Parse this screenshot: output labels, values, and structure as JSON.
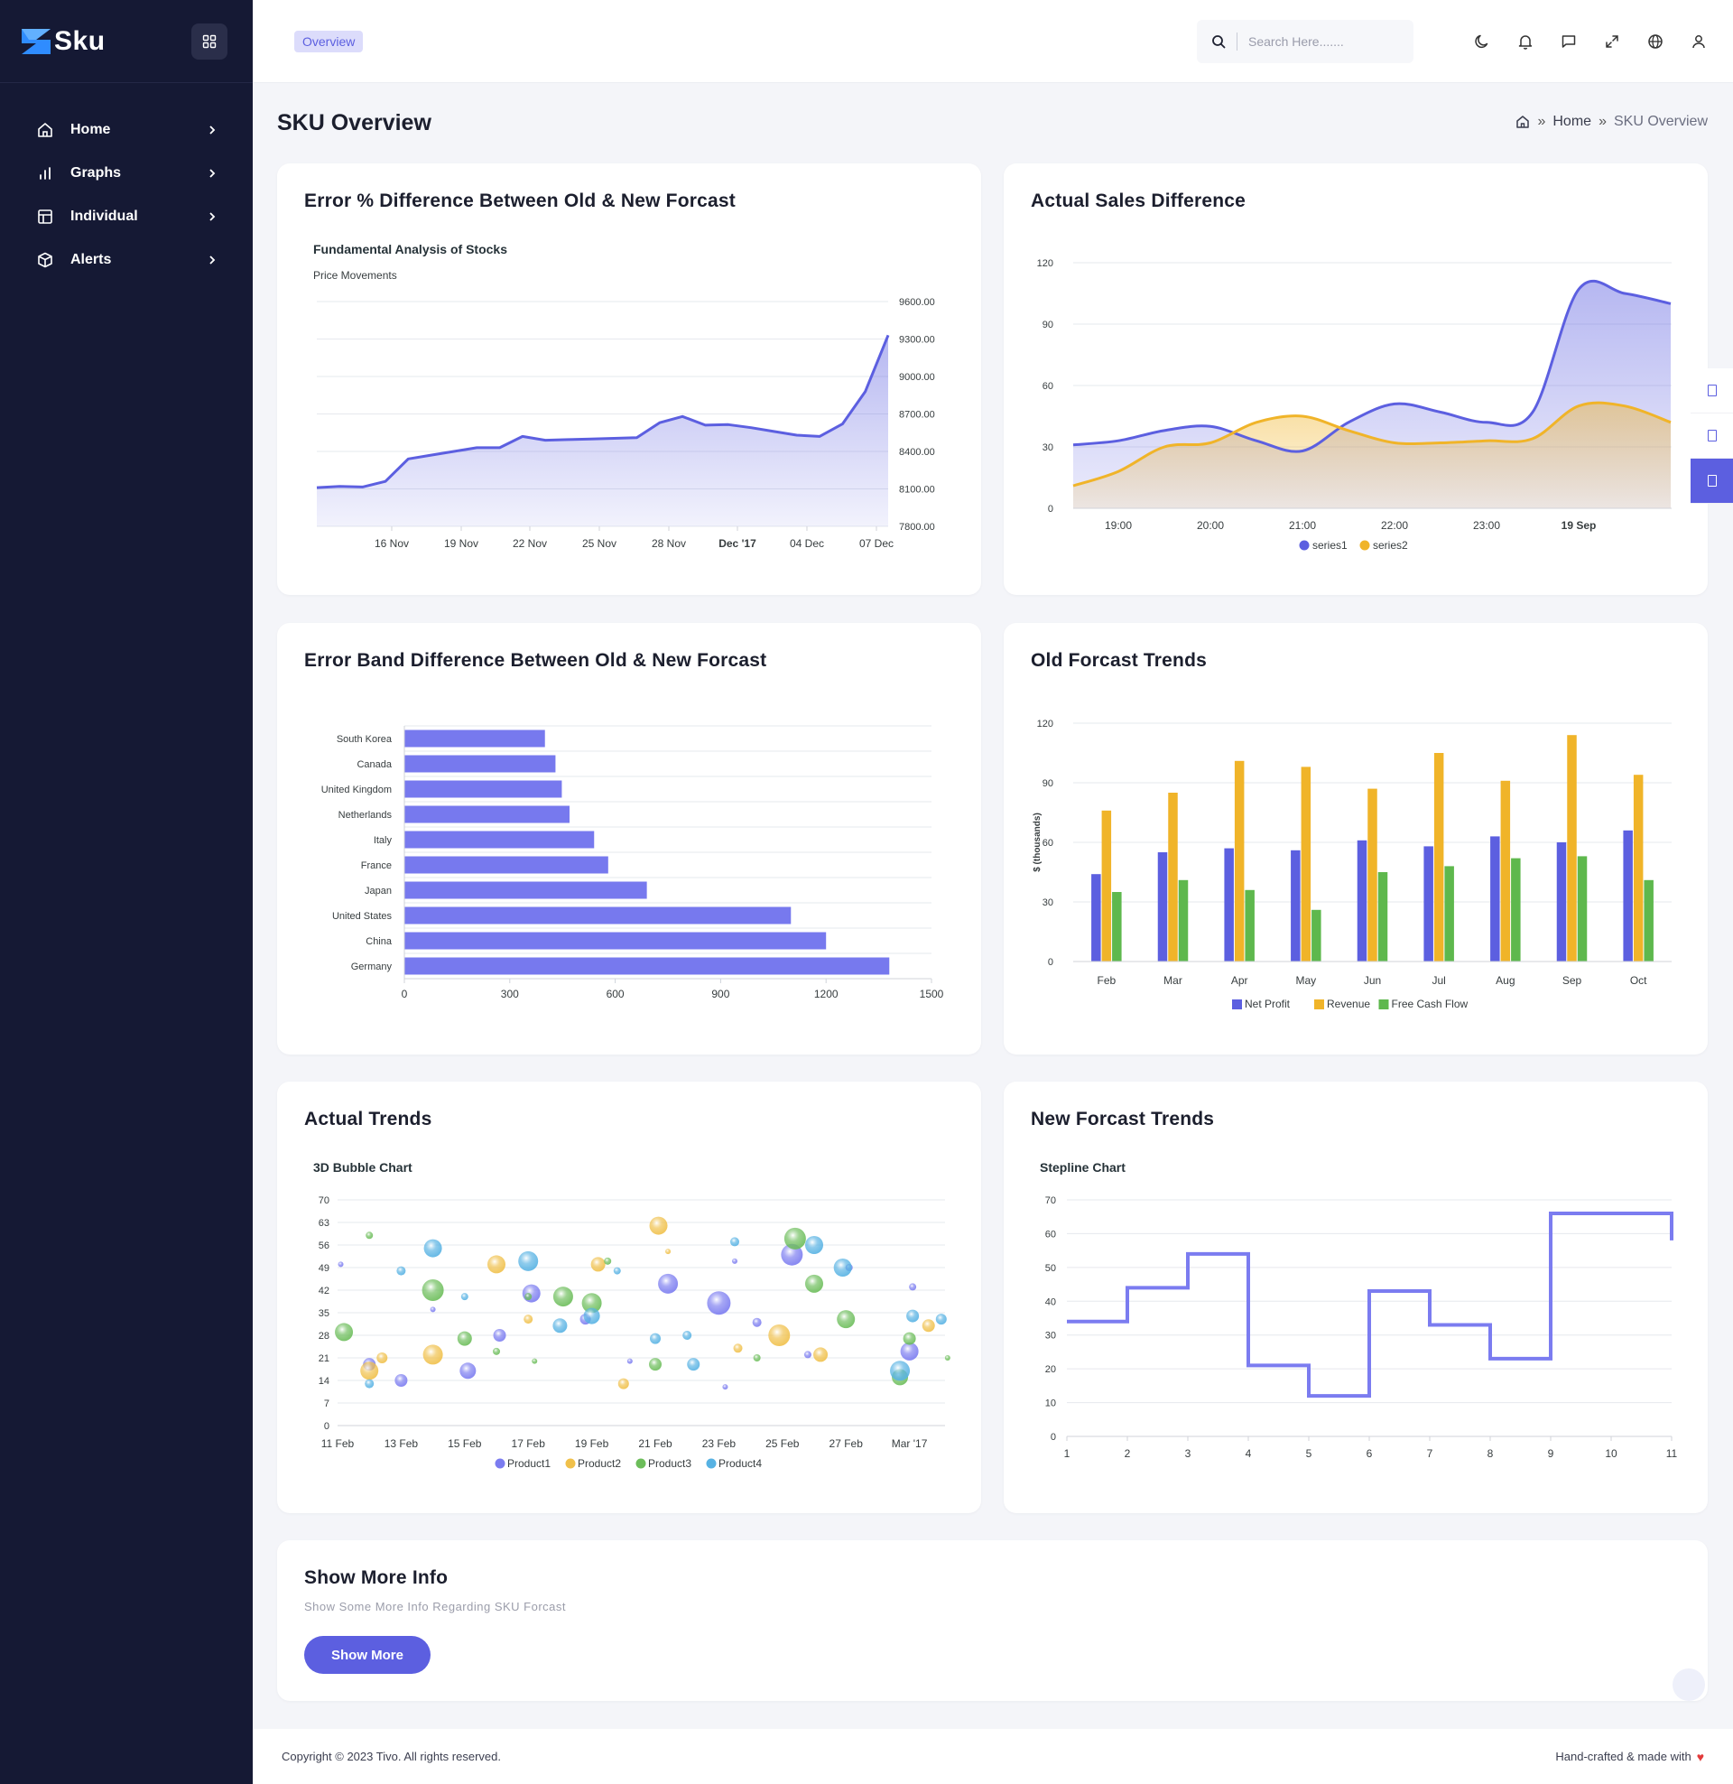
{
  "brand": {
    "name": "Sku",
    "accent": "#5c5fe0",
    "sidebar_bg": "#151934"
  },
  "sidebar": {
    "items": [
      {
        "label": "Home",
        "icon": "home-icon"
      },
      {
        "label": "Graphs",
        "icon": "bar-chart-icon"
      },
      {
        "label": "Individual",
        "icon": "layout-icon"
      },
      {
        "label": "Alerts",
        "icon": "box-icon"
      }
    ]
  },
  "header": {
    "tab": "Overview",
    "search_placeholder": "Search Here.......",
    "icons": [
      "moon-icon",
      "bell-icon",
      "chat-icon",
      "fullscreen-icon",
      "globe-icon",
      "user-icon"
    ]
  },
  "page": {
    "title": "SKU Overview",
    "breadcrumb": [
      "Home",
      "SKU Overview"
    ]
  },
  "cards": {
    "c1": "Error % Difference Between Old & New Forcast",
    "c2": "Actual Sales Difference",
    "c3": "Error Band Difference Between Old & New Forcast",
    "c4": "Old Forcast Trends",
    "c5": "Actual Trends",
    "c6": "New Forcast Trends"
  },
  "info": {
    "title": "Show More Info",
    "subtitle": "Show Some More Info Regarding SKU Forcast",
    "button": "Show More"
  },
  "footer": {
    "copyright": "Copyright © 2023 Tivo. All rights reserved.",
    "credit": "Hand-crafted & made with"
  },
  "chart_data": [
    {
      "type": "area",
      "title": "Fundamental Analysis of Stocks",
      "subtitle": "Price Movements",
      "x_ticks": [
        "16 Nov",
        "19 Nov",
        "22 Nov",
        "25 Nov",
        "28 Nov",
        "Dec '17",
        "04 Dec",
        "07 Dec"
      ],
      "ylim": [
        7800,
        9600
      ],
      "y_ticks": [
        "7800.00",
        "8100.00",
        "8400.00",
        "8700.00",
        "9000.00",
        "9300.00",
        "9600.00"
      ],
      "y_axis": "right",
      "values": [
        8110,
        8120,
        8115,
        8160,
        8340,
        8370,
        8400,
        8430,
        8430,
        8520,
        8490,
        8495,
        8500,
        8505,
        8510,
        8630,
        8680,
        8610,
        8615,
        8590,
        8560,
        8530,
        8520,
        8620,
        8880,
        9330
      ],
      "color": "#5c5fe0"
    },
    {
      "type": "area",
      "x_ticks": [
        "19:00",
        "20:00",
        "21:00",
        "22:00",
        "23:00",
        "19 Sep"
      ],
      "ylim": [
        0,
        120
      ],
      "y_ticks": [
        0,
        30,
        60,
        90,
        120
      ],
      "x": [
        -0.5,
        0,
        0.5,
        1,
        1.5,
        2,
        2.5,
        3,
        3.5,
        4,
        4.5,
        5,
        5.5,
        6
      ],
      "series": [
        {
          "name": "series1",
          "color": "#5c5fe0",
          "values": [
            31,
            33,
            38,
            40,
            33,
            28,
            42,
            51,
            47,
            42,
            47,
            107,
            105,
            100
          ]
        },
        {
          "name": "series2",
          "color": "#f0b429",
          "values": [
            11,
            18,
            30,
            32,
            42,
            45,
            38,
            32,
            32,
            33,
            34,
            50,
            50,
            42
          ]
        }
      ],
      "legend": "bottom"
    },
    {
      "type": "bar",
      "orientation": "horizontal",
      "categories": [
        "South Korea",
        "Canada",
        "United Kingdom",
        "Netherlands",
        "Italy",
        "France",
        "Japan",
        "United States",
        "China",
        "Germany"
      ],
      "values": [
        400,
        430,
        448,
        470,
        540,
        580,
        690,
        1100,
        1200,
        1380
      ],
      "xlim": [
        0,
        1500
      ],
      "x_ticks": [
        0,
        300,
        600,
        900,
        1200,
        1500
      ],
      "color": "#7779ee"
    },
    {
      "type": "bar",
      "categories": [
        "Feb",
        "Mar",
        "Apr",
        "May",
        "Jun",
        "Jul",
        "Aug",
        "Sep",
        "Oct"
      ],
      "ylabel": "$ (thousands)",
      "ylim": [
        0,
        120
      ],
      "y_ticks": [
        0,
        30,
        60,
        90,
        120
      ],
      "series": [
        {
          "name": "Net Profit",
          "color": "#5c5fe0",
          "values": [
            44,
            55,
            57,
            56,
            61,
            58,
            63,
            60,
            66
          ]
        },
        {
          "name": "Revenue",
          "color": "#f0b429",
          "values": [
            76,
            85,
            101,
            98,
            87,
            105,
            91,
            114,
            94
          ]
        },
        {
          "name": "Free Cash Flow",
          "color": "#5eb84d",
          "values": [
            35,
            41,
            36,
            26,
            45,
            48,
            52,
            53,
            41
          ]
        }
      ],
      "legend": "bottom"
    },
    {
      "type": "scatter",
      "title": "3D Bubble Chart",
      "x_ticks": [
        "11 Feb",
        "13 Feb",
        "15 Feb",
        "17 Feb",
        "19 Feb",
        "21 Feb",
        "23 Feb",
        "25 Feb",
        "27 Feb",
        "Mar '17"
      ],
      "ylim": [
        0,
        70
      ],
      "y_ticks": [
        0,
        7,
        14,
        21,
        28,
        35,
        42,
        49,
        56,
        63,
        70
      ],
      "series": [
        {
          "name": "Product1",
          "color": "#7b7cf0",
          "points": [
            [
              0.1,
              50,
              3
            ],
            [
              1,
              19,
              7
            ],
            [
              2,
              14,
              7
            ],
            [
              3,
              36,
              3
            ],
            [
              4.1,
              17,
              9
            ],
            [
              5.1,
              28,
              7
            ],
            [
              6.1,
              41,
              10
            ],
            [
              7.8,
              33,
              6
            ],
            [
              9.2,
              20,
              3
            ],
            [
              10.4,
              44,
              11
            ],
            [
              12,
              38,
              13
            ],
            [
              12.2,
              12,
              3
            ],
            [
              12.5,
              51,
              3
            ],
            [
              13.2,
              32,
              5
            ],
            [
              14.3,
              53,
              12
            ],
            [
              14.8,
              22,
              4
            ],
            [
              16.1,
              49,
              4
            ],
            [
              18,
              23,
              10
            ],
            [
              18.1,
              43,
              4
            ]
          ]
        },
        {
          "name": "Product2",
          "color": "#f0c04a",
          "points": [
            [
              1,
              17,
              10
            ],
            [
              1.4,
              21,
              6
            ],
            [
              3,
              22,
              11
            ],
            [
              5,
              50,
              10
            ],
            [
              6,
              33,
              5
            ],
            [
              8.2,
              50,
              8
            ],
            [
              9,
              13,
              6
            ],
            [
              10.1,
              62,
              10
            ],
            [
              10.4,
              54,
              3
            ],
            [
              12.6,
              24,
              5
            ],
            [
              13.9,
              28,
              12
            ],
            [
              15.2,
              22,
              8
            ],
            [
              18.6,
              31,
              7
            ]
          ]
        },
        {
          "name": "Product3",
          "color": "#6cbd5a",
          "points": [
            [
              0.2,
              29,
              10
            ],
            [
              1,
              59,
              4
            ],
            [
              3,
              42,
              12
            ],
            [
              4,
              27,
              8
            ],
            [
              5,
              23,
              4
            ],
            [
              6,
              40,
              4
            ],
            [
              6.2,
              20,
              3
            ],
            [
              7.1,
              40,
              11
            ],
            [
              8,
              38,
              11
            ],
            [
              8.5,
              51,
              4
            ],
            [
              10,
              19,
              7
            ],
            [
              13.2,
              21,
              4
            ],
            [
              14.4,
              58,
              12
            ],
            [
              15,
              44,
              10
            ],
            [
              16,
              33,
              10
            ],
            [
              17.7,
              15,
              9
            ],
            [
              18,
              27,
              7
            ],
            [
              19.2,
              21,
              3
            ]
          ]
        },
        {
          "name": "Product4",
          "color": "#57b2e3",
          "points": [
            [
              1,
              13,
              5
            ],
            [
              2,
              48,
              5
            ],
            [
              3,
              55,
              10
            ],
            [
              4,
              40,
              4
            ],
            [
              6,
              51,
              11
            ],
            [
              7,
              31,
              8
            ],
            [
              8,
              34,
              9
            ],
            [
              8.8,
              48,
              4
            ],
            [
              10,
              27,
              6
            ],
            [
              11,
              28,
              5
            ],
            [
              11.2,
              19,
              7
            ],
            [
              12.5,
              57,
              5
            ],
            [
              15,
              56,
              10
            ],
            [
              15.9,
              49,
              10
            ],
            [
              17.7,
              17,
              11
            ],
            [
              18.1,
              34,
              7
            ],
            [
              19,
              33,
              6
            ]
          ]
        }
      ],
      "legend": "bottom"
    },
    {
      "type": "line",
      "title": "Stepline Chart",
      "x_ticks": [
        1,
        2,
        3,
        4,
        5,
        6,
        7,
        8,
        9,
        10,
        11
      ],
      "x": [
        1,
        2,
        3,
        4,
        5,
        6,
        7,
        8,
        9,
        10,
        11
      ],
      "values": [
        34,
        44,
        54,
        21,
        12,
        43,
        33,
        23,
        66,
        66,
        58
      ],
      "ylim": [
        0,
        70
      ],
      "y_ticks": [
        0,
        10,
        20,
        30,
        40,
        50,
        60,
        70
      ],
      "step": true,
      "color": "#7b7cf0"
    }
  ]
}
